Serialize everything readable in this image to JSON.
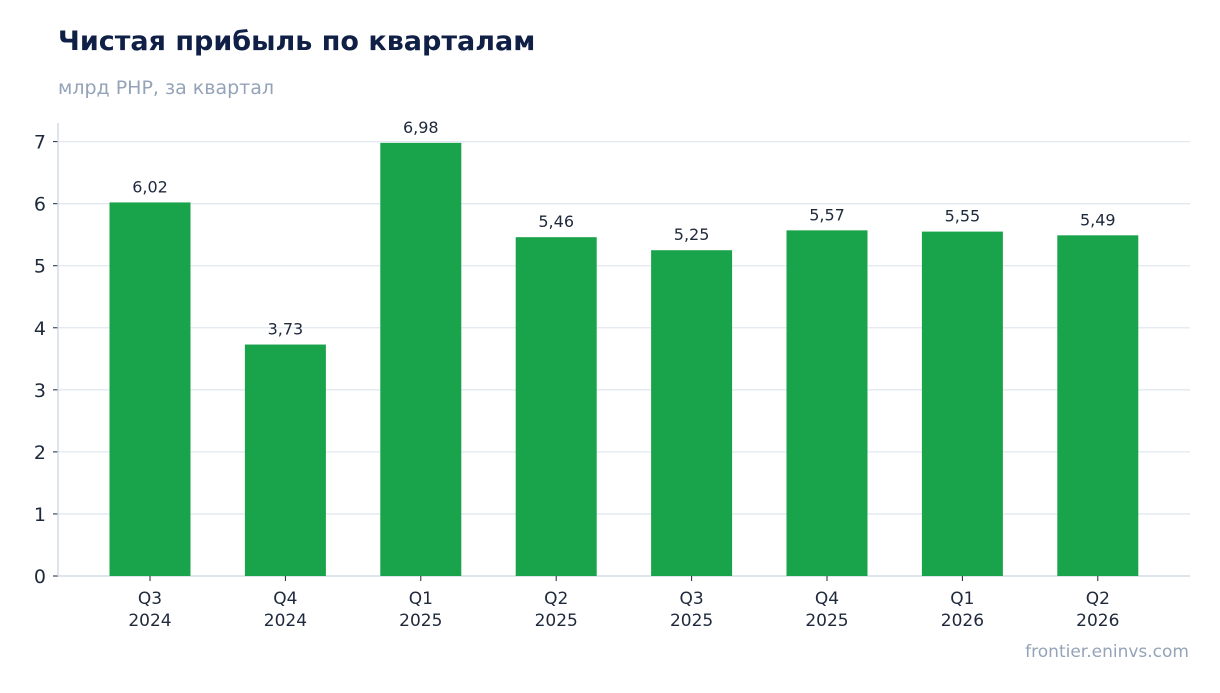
{
  "header": {
    "title": "Чистая прибыль по кварталам",
    "subtitle": "млрд PHP, за квартал"
  },
  "footer": {
    "source": "frontier.eninvs.com"
  },
  "colors": {
    "bar": "#19a34a",
    "title": "#0f1f45",
    "muted": "#94a3b8",
    "grid": "#e2e8f0",
    "axis": "#cbd5e1",
    "text": "#1e293b"
  },
  "chart_data": {
    "type": "bar",
    "title": "Чистая прибыль по кварталам",
    "subtitle": "млрд PHP, за квартал",
    "categories": [
      [
        "Q3",
        "2024"
      ],
      [
        "Q4",
        "2024"
      ],
      [
        "Q1",
        "2025"
      ],
      [
        "Q2",
        "2025"
      ],
      [
        "Q3",
        "2025"
      ],
      [
        "Q4",
        "2025"
      ],
      [
        "Q1",
        "2026"
      ],
      [
        "Q2",
        "2026"
      ]
    ],
    "values": [
      6.02,
      3.73,
      6.98,
      5.46,
      5.25,
      5.57,
      5.55,
      5.49
    ],
    "value_labels": [
      "6,02",
      "3,73",
      "6,98",
      "5,46",
      "5,25",
      "5,57",
      "5,55",
      "5,49"
    ],
    "yticks": [
      0,
      1,
      2,
      3,
      4,
      5,
      6,
      7
    ],
    "ylim": [
      0,
      7.3
    ],
    "grid": true,
    "legend": "none"
  }
}
